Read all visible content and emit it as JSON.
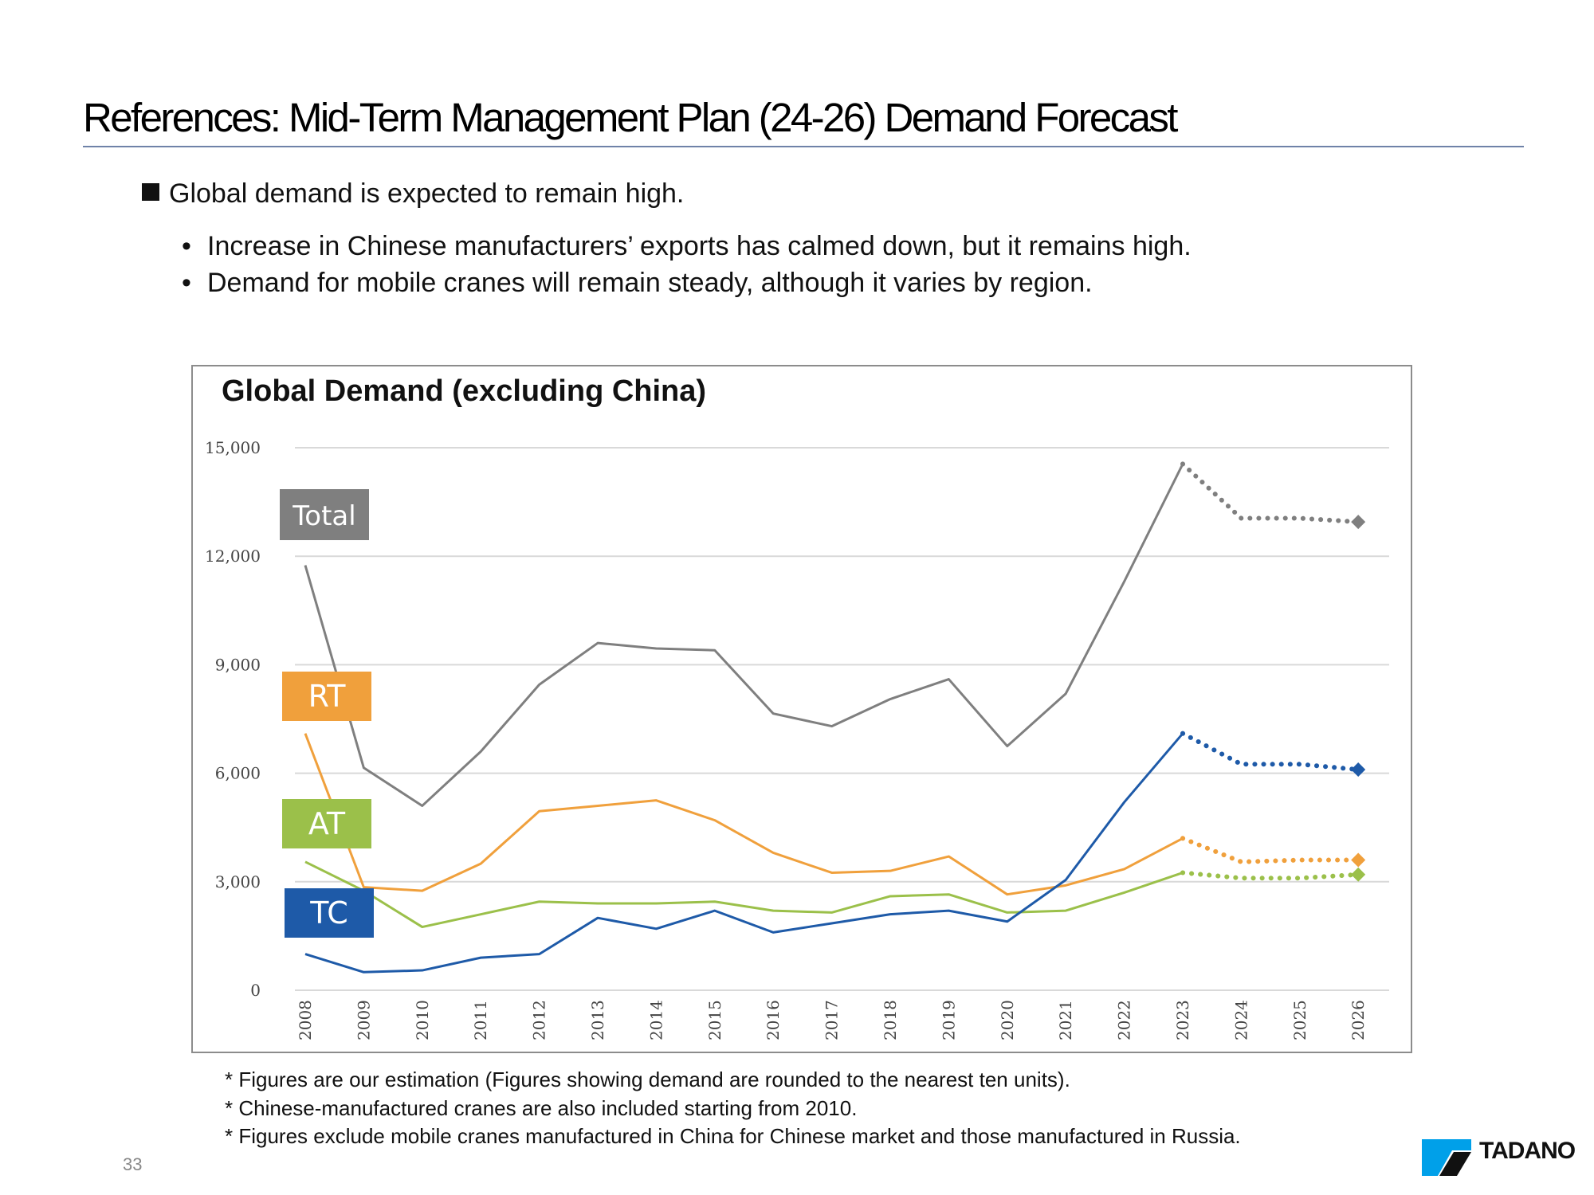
{
  "slide": {
    "title": "References: Mid-Term Management Plan (24-26) Demand Forecast",
    "bullet_main": "Global demand is expected to remain high.",
    "bullet_subs": [
      "Increase in Chinese manufacturers’ exports has calmed down, but it remains high.",
      "Demand for mobile cranes will remain steady, although it varies by region."
    ],
    "footnotes": [
      "* Figures are our estimation (Figures showing demand are rounded to the nearest ten units).",
      "* Chinese-manufactured cranes are also included starting from 2010.",
      "* Figures exclude mobile cranes manufactured in China for Chinese market and those manufactured in Russia."
    ],
    "page_number": "33",
    "logo_text": "TADANO"
  },
  "chart_data": {
    "type": "line",
    "title": "Global Demand (excluding China)",
    "xlabel": "",
    "ylabel": "",
    "ylim": [
      0,
      15000
    ],
    "yticks": [
      0,
      3000,
      6000,
      9000,
      12000,
      15000
    ],
    "ytick_labels": [
      "0",
      "3,000",
      "6,000",
      "9,000",
      "12,000",
      "15,000"
    ],
    "categories": [
      "2008",
      "2009",
      "2010",
      "2011",
      "2012",
      "2013",
      "2014",
      "2015",
      "2016",
      "2017",
      "2018",
      "2019",
      "2020",
      "2021",
      "2022",
      "2023",
      "2024",
      "2025",
      "2026"
    ],
    "forecast_from": "2023",
    "grid": true,
    "series": [
      {
        "name": "Total",
        "color": "#7f7f7f",
        "values": [
          11750,
          6150,
          5100,
          6600,
          8450,
          9600,
          9450,
          9400,
          7650,
          7300,
          8050,
          8600,
          6750,
          8200,
          11300,
          14550,
          13050,
          13050,
          12950
        ]
      },
      {
        "name": "RT",
        "color": "#f0a03c",
        "values": [
          7100,
          2850,
          2750,
          3500,
          4950,
          5100,
          5250,
          4700,
          3800,
          3250,
          3300,
          3700,
          2650,
          2900,
          3350,
          4200,
          3550,
          3600,
          3600
        ]
      },
      {
        "name": "AT",
        "color": "#9bc04a",
        "values": [
          3550,
          2750,
          1750,
          2100,
          2450,
          2400,
          2400,
          2450,
          2200,
          2150,
          2600,
          2650,
          2150,
          2200,
          2700,
          3250,
          3100,
          3100,
          3200
        ]
      },
      {
        "name": "TC",
        "color": "#1e5aa8",
        "values": [
          1000,
          500,
          550,
          900,
          1000,
          2000,
          1700,
          2200,
          1600,
          1850,
          2100,
          2200,
          1900,
          3050,
          5200,
          7100,
          6250,
          6250,
          6100
        ]
      }
    ]
  }
}
